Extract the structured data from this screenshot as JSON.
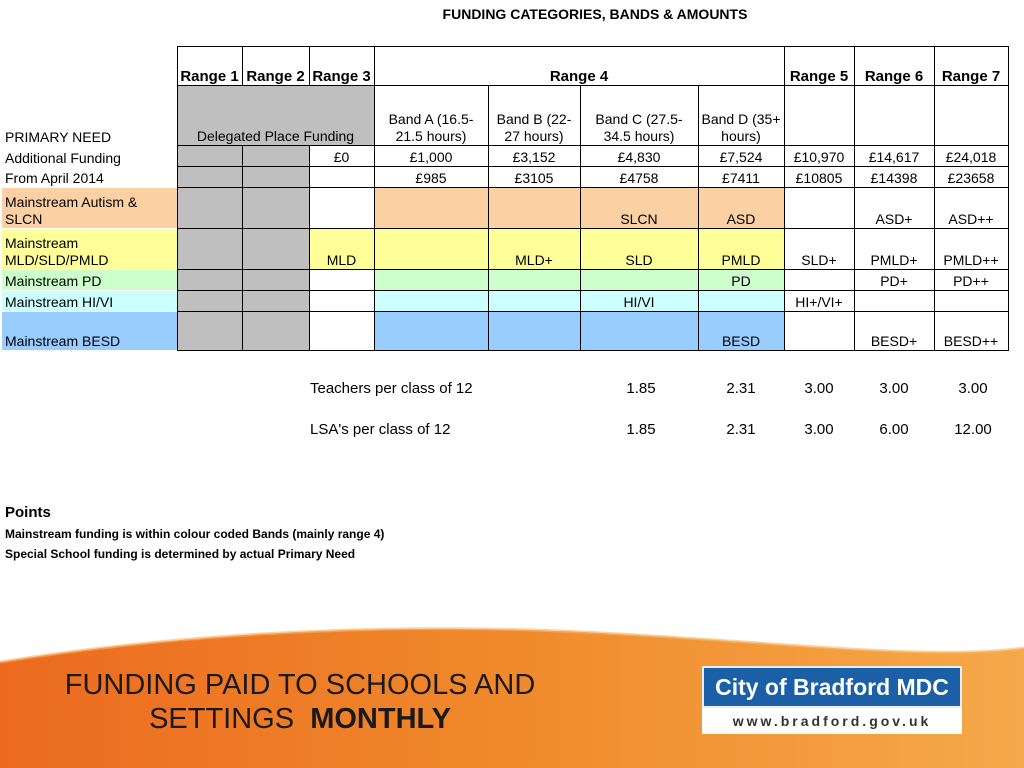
{
  "title": "FUNDING CATEGORIES, BANDS & AMOUNTS",
  "colors": {
    "grey": "#bfbfbf",
    "autism": "#fbd0a2",
    "mld": "#ffff99",
    "pd": "#ccffcc",
    "hi": "#ccffff",
    "besd": "#99ccff",
    "footer_orange": "#ee7a22",
    "logo_blue": "#1b5fa6"
  },
  "table": {
    "headers": {
      "range1": "Range 1",
      "range2": "Range 2",
      "range3": "Range 3",
      "range4": "Range 4",
      "range5": "Range 5",
      "range6": "Range 6",
      "range7": "Range 7"
    },
    "primary_need": "PRIMARY NEED",
    "delegated": "Delegated Place Funding",
    "bands": {
      "a": "Band A (16.5-21.5 hours)",
      "b": "Band B (22-27 hours)",
      "c": "Band C (27.5-34.5 hours)",
      "d": "Band D (35+ hours)"
    },
    "additional": {
      "label": "Additional Funding",
      "r3": "£0",
      "a": "£1,000",
      "b": "£3,152",
      "c": "£4,830",
      "d": "£7,524",
      "r5": "£10,970",
      "r6": "£14,617",
      "r7": "£24,018"
    },
    "april": {
      "label": "From April 2014",
      "a": "£985",
      "b": "£3105",
      "c": "£4758",
      "d": "£7411",
      "r5": "£10805",
      "r6": "£14398",
      "r7": "£23658"
    },
    "autism": {
      "label": "Mainstream Autism & SLCN",
      "c": "SLCN",
      "d": "ASD",
      "r6": "ASD+",
      "r7": "ASD++"
    },
    "mld": {
      "label": "Mainstream MLD/SLD/PMLD",
      "r3": "MLD",
      "b": "MLD+",
      "c": "SLD",
      "d": "PMLD",
      "r5": "SLD+",
      "r6": "PMLD+",
      "r7": "PMLD++"
    },
    "pd": {
      "label": "Mainstream PD",
      "d": "PD",
      "r6": "PD+",
      "r7": "PD++"
    },
    "hi": {
      "label": "Mainstream HI/VI",
      "c": "HI/VI",
      "r5": "HI+/VI+"
    },
    "besd": {
      "label": "Mainstream BESD",
      "d": "BESD",
      "r6": "BESD+",
      "r7": "BESD++"
    }
  },
  "staffing": {
    "teachers": {
      "label": "Teachers per class of 12",
      "c": "1.85",
      "d": "2.31",
      "r5": "3.00",
      "r6": "3.00",
      "r7": "3.00"
    },
    "lsa": {
      "label": "LSA's per class of 12",
      "c": "1.85",
      "d": "2.31",
      "r5": "3.00",
      "r6": "6.00",
      "r7": "12.00"
    }
  },
  "points": {
    "title": "Points",
    "line1": "Mainstream funding is within colour coded Bands (mainly range 4)",
    "line2": "Special School funding is determined by actual Primary Need"
  },
  "footer": {
    "title_line1": "FUNDING PAID TO SCHOOLS AND",
    "title_line2": "SETTINGS",
    "title_bold": "MONTHLY"
  },
  "logo": {
    "name": "City of Bradford MDC",
    "url": "www.bradford.gov.uk"
  }
}
